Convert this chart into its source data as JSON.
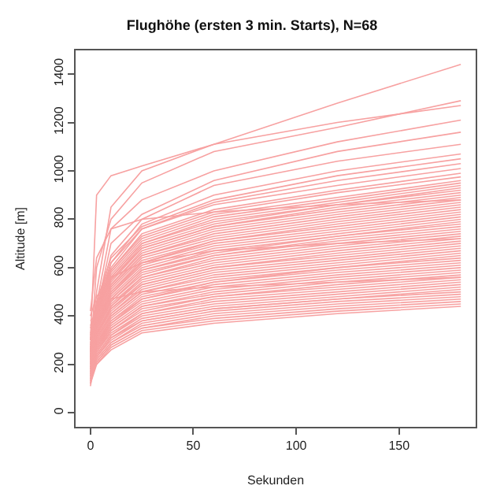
{
  "chart_data": {
    "type": "line",
    "title": "Flughöhe (ersten 3 min. Starts), N=68",
    "xlabel": "Sekunden",
    "ylabel": "Altitude [m]",
    "x": [
      0,
      3,
      10,
      25,
      60,
      120,
      180
    ],
    "xlim": [
      -7.2,
      187.2
    ],
    "xticks": [
      0,
      50,
      100,
      150
    ],
    "ylim": [
      -58,
      1498
    ],
    "yticks": [
      0,
      200,
      400,
      600,
      800,
      1000,
      1200,
      1400
    ],
    "marker": "none",
    "line_style": "solid",
    "series": [
      {
        "color": "#f7a1a1",
        "values": [
          300,
          900,
          980,
          1020,
          1110,
          1280,
          1440
        ]
      },
      {
        "color": "#f7a1a1",
        "values": [
          250,
          600,
          800,
          950,
          1080,
          1180,
          1290
        ]
      },
      {
        "color": "#f7a1a1",
        "values": [
          280,
          500,
          850,
          1000,
          1110,
          1200,
          1270
        ]
      },
      {
        "color": "#f7a1a1",
        "values": [
          220,
          450,
          760,
          880,
          1000,
          1120,
          1210
        ]
      },
      {
        "color": "#f7a1a1",
        "values": [
          260,
          420,
          700,
          820,
          960,
          1080,
          1160
        ]
      },
      {
        "color": "#f7a1a1",
        "values": [
          240,
          430,
          650,
          800,
          940,
          1040,
          1110
        ]
      },
      {
        "color": "#f7a1a1",
        "values": [
          230,
          400,
          620,
          780,
          900,
          1000,
          1070
        ]
      },
      {
        "color": "#f7a1a1",
        "values": [
          260,
          460,
          640,
          770,
          880,
          980,
          1050
        ]
      },
      {
        "color": "#f7a1a1",
        "values": [
          210,
          420,
          600,
          760,
          870,
          960,
          1030
        ]
      },
      {
        "color": "#f7a1a1",
        "values": [
          250,
          440,
          620,
          760,
          860,
          940,
          1010
        ]
      },
      {
        "color": "#f7a1a1",
        "values": [
          320,
          450,
          590,
          740,
          840,
          920,
          990
        ]
      },
      {
        "color": "#f7a1a1",
        "values": [
          180,
          440,
          590,
          730,
          830,
          910,
          975
        ]
      },
      {
        "color": "#f7a1a1",
        "values": [
          350,
          430,
          580,
          720,
          820,
          890,
          960
        ]
      },
      {
        "color": "#f7a1a1",
        "values": [
          270,
          430,
          570,
          710,
          810,
          880,
          950
        ]
      },
      {
        "color": "#f7a1a1",
        "values": [
          150,
          420,
          560,
          700,
          800,
          870,
          940
        ]
      },
      {
        "color": "#f7a1a1",
        "values": [
          300,
          420,
          560,
          700,
          790,
          860,
          930
        ]
      },
      {
        "color": "#f7a1a1",
        "values": [
          200,
          410,
          550,
          690,
          780,
          860,
          920
        ]
      },
      {
        "color": "#f7a1a1",
        "values": [
          380,
          410,
          550,
          680,
          770,
          850,
          910
        ]
      },
      {
        "color": "#f7a1a1",
        "values": [
          240,
          410,
          540,
          680,
          770,
          840,
          900
        ]
      },
      {
        "color": "#f7a1a1",
        "values": [
          120,
          400,
          530,
          670,
          760,
          830,
          890
        ]
      },
      {
        "color": "#f7a1a1",
        "values": [
          330,
          400,
          530,
          660,
          750,
          820,
          880
        ]
      },
      {
        "color": "#f7a1a1",
        "values": [
          260,
          390,
          520,
          650,
          740,
          810,
          870
        ]
      },
      {
        "color": "#f7a1a1",
        "values": [
          190,
          390,
          520,
          650,
          730,
          800,
          860
        ]
      },
      {
        "color": "#f7a1a1",
        "values": [
          310,
          380,
          510,
          640,
          720,
          790,
          850
        ]
      },
      {
        "color": "#f7a1a1",
        "values": [
          230,
          380,
          500,
          630,
          710,
          780,
          840
        ]
      },
      {
        "color": "#f7a1a1",
        "values": [
          280,
          370,
          500,
          620,
          710,
          770,
          830
        ]
      },
      {
        "color": "#f7a1a1",
        "values": [
          170,
          370,
          490,
          620,
          700,
          760,
          820
        ]
      },
      {
        "color": "#f7a1a1",
        "values": [
          340,
          360,
          490,
          610,
          690,
          750,
          810
        ]
      },
      {
        "color": "#f7a1a1",
        "values": [
          220,
          360,
          480,
          600,
          680,
          740,
          800
        ]
      },
      {
        "color": "#f7a1a1",
        "values": [
          290,
          360,
          470,
          590,
          670,
          730,
          790
        ]
      },
      {
        "color": "#f7a1a1",
        "values": [
          160,
          350,
          470,
          590,
          660,
          730,
          780
        ]
      },
      {
        "color": "#f7a1a1",
        "values": [
          300,
          350,
          460,
          580,
          650,
          720,
          770
        ]
      },
      {
        "color": "#f7a1a1",
        "values": [
          250,
          340,
          460,
          570,
          650,
          710,
          760
        ]
      },
      {
        "color": "#f7a1a1",
        "values": [
          200,
          340,
          450,
          560,
          640,
          700,
          750
        ]
      },
      {
        "color": "#f7a1a1",
        "values": [
          270,
          330,
          440,
          560,
          630,
          690,
          740
        ]
      },
      {
        "color": "#f7a1a1",
        "values": [
          140,
          330,
          440,
          550,
          620,
          680,
          730
        ]
      },
      {
        "color": "#f7a1a1",
        "values": [
          300,
          320,
          430,
          540,
          610,
          670,
          720
        ]
      },
      {
        "color": "#f7a1a1",
        "values": [
          230,
          320,
          430,
          530,
          600,
          660,
          710
        ]
      },
      {
        "color": "#f7a1a1",
        "values": [
          260,
          320,
          420,
          530,
          600,
          650,
          700
        ]
      },
      {
        "color": "#f7a1a1",
        "values": [
          180,
          310,
          410,
          520,
          590,
          640,
          690
        ]
      },
      {
        "color": "#f7a1a1",
        "values": [
          290,
          310,
          410,
          510,
          580,
          630,
          680
        ]
      },
      {
        "color": "#f7a1a1",
        "values": [
          210,
          300,
          400,
          500,
          570,
          620,
          670
        ]
      },
      {
        "color": "#f7a1a1",
        "values": [
          250,
          300,
          400,
          500,
          560,
          610,
          660
        ]
      },
      {
        "color": "#f7a1a1",
        "values": [
          130,
          290,
          390,
          490,
          550,
          600,
          650
        ]
      },
      {
        "color": "#f7a1a1",
        "values": [
          270,
          290,
          380,
          480,
          540,
          600,
          640
        ]
      },
      {
        "color": "#f7a1a1",
        "values": [
          220,
          280,
          380,
          470,
          540,
          590,
          630
        ]
      },
      {
        "color": "#f7a1a1",
        "values": [
          240,
          280,
          370,
          470,
          530,
          580,
          620
        ]
      },
      {
        "color": "#f7a1a1",
        "values": [
          160,
          270,
          370,
          460,
          520,
          570,
          610
        ]
      },
      {
        "color": "#f7a1a1",
        "values": [
          260,
          270,
          360,
          450,
          510,
          560,
          600
        ]
      },
      {
        "color": "#f7a1a1",
        "values": [
          200,
          270,
          350,
          440,
          500,
          550,
          590
        ]
      },
      {
        "color": "#f7a1a1",
        "values": [
          230,
          260,
          350,
          440,
          490,
          540,
          580
        ]
      },
      {
        "color": "#f7a1a1",
        "values": [
          110,
          260,
          340,
          430,
          480,
          530,
          570
        ]
      },
      {
        "color": "#f7a1a1",
        "values": [
          240,
          250,
          340,
          420,
          480,
          520,
          560
        ]
      },
      {
        "color": "#f7a1a1",
        "values": [
          190,
          250,
          330,
          410,
          470,
          510,
          550
        ]
      },
      {
        "color": "#f7a1a1",
        "values": [
          220,
          240,
          320,
          410,
          460,
          500,
          540
        ]
      },
      {
        "color": "#f7a1a1",
        "values": [
          170,
          240,
          320,
          400,
          450,
          490,
          530
        ]
      },
      {
        "color": "#f7a1a1",
        "values": [
          210,
          230,
          310,
          390,
          440,
          480,
          520
        ]
      },
      {
        "color": "#f7a1a1",
        "values": [
          150,
          230,
          310,
          380,
          430,
          470,
          510
        ]
      },
      {
        "color": "#f7a1a1",
        "values": [
          200,
          230,
          300,
          380,
          430,
          470,
          500
        ]
      },
      {
        "color": "#f7a1a1",
        "values": [
          140,
          220,
          290,
          370,
          420,
          460,
          490
        ]
      },
      {
        "color": "#f7a1a1",
        "values": [
          190,
          220,
          290,
          360,
          410,
          450,
          480
        ]
      },
      {
        "color": "#f7a1a1",
        "values": [
          130,
          210,
          280,
          350,
          400,
          440,
          470
        ]
      },
      {
        "color": "#f7a1a1",
        "values": [
          180,
          210,
          280,
          350,
          390,
          430,
          460
        ]
      },
      {
        "color": "#f7a1a1",
        "values": [
          120,
          200,
          270,
          340,
          380,
          420,
          450
        ]
      },
      {
        "color": "#f7a1a1",
        "values": [
          170,
          200,
          260,
          330,
          370,
          410,
          440
        ]
      },
      {
        "color": "#f7a1a1",
        "values": [
          360,
          420,
          470,
          500,
          520,
          540,
          560
        ]
      },
      {
        "color": "#f7a1a1",
        "values": [
          400,
          480,
          560,
          620,
          670,
          700,
          720
        ]
      },
      {
        "color": "#f7a1a1",
        "values": [
          420,
          640,
          760,
          800,
          830,
          860,
          880
        ]
      }
    ]
  }
}
